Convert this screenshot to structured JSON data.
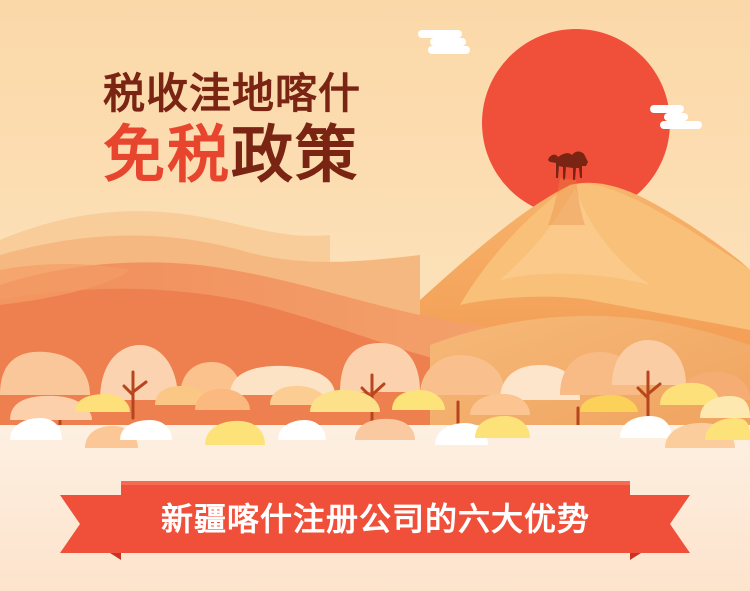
{
  "title": {
    "line1": "税收洼地喀什",
    "line2_part1": "免税",
    "line2_part2": "政策"
  },
  "banner": {
    "text": "新疆喀什注册公司的六大优势"
  },
  "colors": {
    "title_dark": "#7a2414",
    "title_accent": "#e8452f",
    "sun": "#f0503a",
    "banner": "#f0503a",
    "banner_dark": "#c93323",
    "sky_top": "#fde7c2",
    "ground": "#fde9d6"
  },
  "icons": [
    "cloud-icon",
    "sun-icon",
    "camel-icon",
    "tree-icon"
  ]
}
